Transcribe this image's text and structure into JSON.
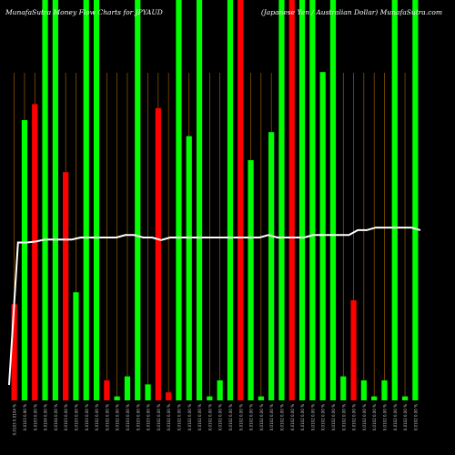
{
  "header": {
    "left_title": "MunafaSutra Money Flow Charts for JPYAUD",
    "right_title": "(Japanese Yen / Australian Dollar) MunafaSutra.com"
  },
  "colors": {
    "background": "#000000",
    "up": "#00ff00",
    "down": "#ff0000",
    "grid": "#b36b00",
    "line": "#ffffff",
    "label": "#cccccc"
  },
  "chart_data": {
    "type": "bar",
    "title": "MunafaSutra Money Flow Charts for JPYAUD",
    "ylim": [
      0,
      1
    ],
    "grid": true,
    "bars": [
      {
        "label": "0.0103 0.0104 %",
        "dir": "down",
        "value": 0.24
      },
      {
        "label": "0.0103 0.90 %",
        "dir": "up",
        "value": 0.7
      },
      {
        "label": "0.0103 0.00 %",
        "dir": "down",
        "value": 0.74
      },
      {
        "label": "0.0104 0.00 %",
        "dir": "up",
        "value": 1.0
      },
      {
        "label": "0.0104 0.00 %",
        "dir": "up",
        "value": 1.0
      },
      {
        "label": "0.0103 0.00 %",
        "dir": "down",
        "value": 0.57
      },
      {
        "label": "0.0103 0.00 %",
        "dir": "up",
        "value": 0.27
      },
      {
        "label": "0.0103 0.00 %",
        "dir": "up",
        "value": 1.0
      },
      {
        "label": "0.0102 0.00 %",
        "dir": "up",
        "value": 1.0
      },
      {
        "label": "0.0102 0.00 %",
        "dir": "down",
        "value": 0.05
      },
      {
        "label": "0.0102 0.00 %",
        "dir": "up",
        "value": 0.01
      },
      {
        "label": "0.0103 0.00 %",
        "dir": "up",
        "value": 0.06
      },
      {
        "label": "0.0103 0.00 %",
        "dir": "up",
        "value": 1.0
      },
      {
        "label": "0.0103 0.00 %",
        "dir": "up",
        "value": 0.04
      },
      {
        "label": "0.0102 0.00 %",
        "dir": "down",
        "value": 0.73
      },
      {
        "label": "0.0102 0.00 %",
        "dir": "down",
        "value": 0.02
      },
      {
        "label": "0.0102 0.00 %",
        "dir": "up",
        "value": 1.0
      },
      {
        "label": "0.0102 0.00 %",
        "dir": "up",
        "value": 0.66
      },
      {
        "label": "0.0102 0.00 %",
        "dir": "up",
        "value": 1.0
      },
      {
        "label": "0.0102 0.00 %",
        "dir": "up",
        "value": 0.01
      },
      {
        "label": "0.0102 0.00 %",
        "dir": "up",
        "value": 0.05
      },
      {
        "label": "0.0102 0.00 %",
        "dir": "up",
        "value": 1.0
      },
      {
        "label": "0.0102 0.00 %",
        "dir": "down",
        "value": 1.0
      },
      {
        "label": "0.0102 0.00 %",
        "dir": "up",
        "value": 0.6
      },
      {
        "label": "0.0102 0.00 %",
        "dir": "up",
        "value": 0.01
      },
      {
        "label": "0.0102 0.00 %",
        "dir": "up",
        "value": 0.67
      },
      {
        "label": "0.0102 0.00 %",
        "dir": "up",
        "value": 1.0
      },
      {
        "label": "0.0102 0.00 %",
        "dir": "down",
        "value": 1.0
      },
      {
        "label": "0.0102 0.00 %",
        "dir": "up",
        "value": 1.0
      },
      {
        "label": "0.0102 0.00 %",
        "dir": "up",
        "value": 1.0
      },
      {
        "label": "0.0102 0.00 %",
        "dir": "up",
        "value": 0.82
      },
      {
        "label": "0.0102 0.00 %",
        "dir": "up",
        "value": 1.0
      },
      {
        "label": "0.0102 0.00 %",
        "dir": "up",
        "value": 0.06
      },
      {
        "label": "0.0102 0.00 %",
        "dir": "down",
        "value": 0.25
      },
      {
        "label": "0.0102 0.00 %",
        "dir": "up",
        "value": 0.05
      },
      {
        "label": "0.0102 0.00 %",
        "dir": "up",
        "value": 0.01
      },
      {
        "label": "0.0102 0.00 %",
        "dir": "up",
        "value": 0.05
      },
      {
        "label": "0.0102 0.00 %",
        "dir": "up",
        "value": 1.0
      },
      {
        "label": "0.0102 0.00 %",
        "dir": "up",
        "value": 0.01
      },
      {
        "label": "0.0102 0.00 %",
        "dir": "up",
        "value": 1.0
      }
    ],
    "price_line": [
      0.062,
      0.636,
      0.636,
      0.64,
      0.648,
      0.648,
      0.648,
      0.648,
      0.656,
      0.656,
      0.656,
      0.656,
      0.656,
      0.666,
      0.666,
      0.656,
      0.656,
      0.646,
      0.656,
      0.656,
      0.656,
      0.656,
      0.656,
      0.656,
      0.656,
      0.656,
      0.656,
      0.656,
      0.656,
      0.666,
      0.656,
      0.656,
      0.656,
      0.656,
      0.666,
      0.666,
      0.666,
      0.666,
      0.666,
      0.686,
      0.686,
      0.696,
      0.696,
      0.696,
      0.696,
      0.696,
      0.686
    ]
  }
}
